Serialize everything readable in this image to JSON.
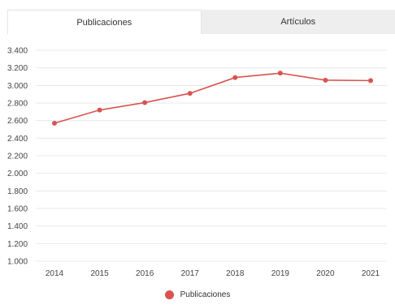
{
  "tabs": [
    {
      "label": "Publicaciones",
      "active": true
    },
    {
      "label": "Artículos",
      "active": false
    }
  ],
  "colors": {
    "series": "#d9534f",
    "grid": "#e8e8e8",
    "tab_inactive_bg": "#eeeeee"
  },
  "chart_data": {
    "type": "line",
    "title": "",
    "xlabel": "",
    "ylabel": "",
    "categories": [
      "2014",
      "2015",
      "2016",
      "2017",
      "2018",
      "2019",
      "2020",
      "2021"
    ],
    "series": [
      {
        "name": "Publicaciones",
        "values": [
          2570,
          2720,
          2805,
          2910,
          3090,
          3140,
          3060,
          3055
        ]
      }
    ],
    "ylim": [
      1000,
      3400
    ],
    "yticks": [
      1000,
      1200,
      1400,
      1600,
      1800,
      2000,
      2200,
      2400,
      2600,
      2800,
      3000,
      3200,
      3400
    ],
    "ytick_labels": [
      "1.000",
      "1.200",
      "1.400",
      "1.600",
      "1.800",
      "2.000",
      "2.200",
      "2.400",
      "2.600",
      "2.800",
      "3.000",
      "3.200",
      "3.400"
    ],
    "grid": true,
    "legend_position": "bottom-center"
  },
  "legend": {
    "label": "Publicaciones"
  }
}
